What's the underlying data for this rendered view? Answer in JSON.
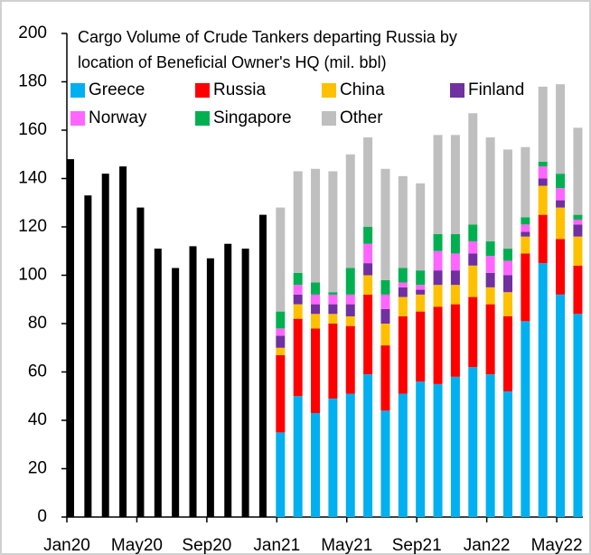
{
  "chart_data": {
    "type": "stacked-bar",
    "title": [
      "Cargo Volume of Crude Tankers departing Russia by",
      "location of Beneficial Owner's HQ (mil. bbl)"
    ],
    "categories": [
      "Jan20",
      null,
      null,
      null,
      "May20",
      null,
      null,
      null,
      "Sep20",
      null,
      null,
      null,
      "Jan21",
      null,
      null,
      null,
      "May21",
      null,
      null,
      null,
      "Sep21",
      null,
      null,
      null,
      "Jan22",
      null,
      null,
      null,
      "May22",
      null
    ],
    "series": [
      {
        "name": "Greece",
        "color": "#00b0f0",
        "values": [
          null,
          null,
          null,
          null,
          null,
          null,
          null,
          null,
          null,
          null,
          null,
          null,
          35,
          50,
          43,
          49,
          51,
          59,
          44,
          51,
          56,
          55,
          58,
          62,
          59,
          52,
          81,
          105,
          92,
          84
        ]
      },
      {
        "name": "Russia",
        "color": "#ff0000",
        "values": [
          null,
          null,
          null,
          null,
          null,
          null,
          null,
          null,
          null,
          null,
          null,
          null,
          32,
          32,
          35,
          31,
          28,
          33,
          27,
          32,
          29,
          32,
          30,
          29,
          29,
          31,
          28,
          20,
          23,
          20
        ]
      },
      {
        "name": "China",
        "color": "#ffc000",
        "values": [
          null,
          null,
          null,
          null,
          null,
          null,
          null,
          null,
          null,
          null,
          null,
          null,
          3,
          6,
          6,
          4,
          4,
          8,
          9,
          8,
          7,
          9,
          8,
          13,
          7,
          10,
          7,
          12,
          13,
          12
        ]
      },
      {
        "name": "Finland",
        "color": "#7030a0",
        "values": [
          null,
          null,
          null,
          null,
          null,
          null,
          null,
          null,
          null,
          null,
          null,
          null,
          5,
          4,
          4,
          4,
          5,
          5,
          6,
          4,
          2,
          6,
          6,
          5,
          6,
          7,
          2,
          3,
          3,
          5
        ]
      },
      {
        "name": "Norway",
        "color": "#ff66ff",
        "values": [
          null,
          null,
          null,
          null,
          null,
          null,
          null,
          null,
          null,
          null,
          null,
          null,
          3,
          4,
          4,
          4,
          4,
          8,
          6,
          2,
          2,
          8,
          7,
          5,
          7,
          6,
          3,
          5,
          5,
          2
        ]
      },
      {
        "name": "Singapore",
        "color": "#00b050",
        "values": [
          null,
          null,
          null,
          null,
          null,
          null,
          null,
          null,
          null,
          null,
          null,
          null,
          7,
          5,
          5,
          1,
          11,
          7,
          6,
          6,
          6,
          7,
          8,
          7,
          6,
          5,
          3,
          2,
          6,
          2
        ]
      },
      {
        "name": "Other",
        "color": "#bfbfbf",
        "values": [
          null,
          null,
          null,
          null,
          null,
          null,
          null,
          null,
          null,
          null,
          null,
          null,
          43,
          42,
          47,
          50,
          47,
          37,
          46,
          38,
          36,
          41,
          41,
          46,
          43,
          41,
          29,
          31,
          37,
          36
        ]
      },
      {
        "color": "#000000",
        "values": [
          148,
          133,
          142,
          145,
          128,
          111,
          103,
          112,
          107,
          113,
          111,
          125,
          null,
          null,
          null,
          null,
          null,
          null,
          null,
          null,
          null,
          null,
          null,
          null,
          null,
          null,
          null,
          null,
          null,
          null
        ]
      }
    ],
    "ylim": [
      0,
      200
    ],
    "yticks": [
      0,
      20,
      40,
      60,
      80,
      100,
      120,
      140,
      160,
      180,
      200
    ]
  }
}
